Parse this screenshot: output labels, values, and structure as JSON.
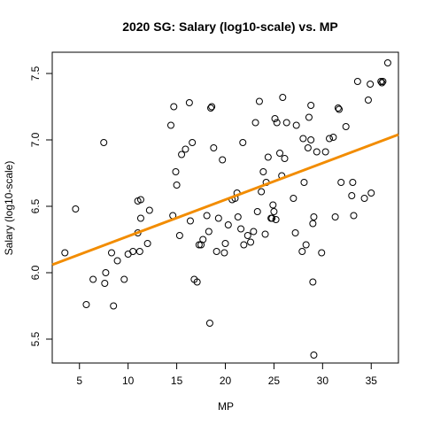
{
  "chart_data": {
    "type": "scatter",
    "title": "2020 SG: Salary (log10-scale) vs. MP",
    "xlabel": "MP",
    "ylabel": "Salary (log10-scale)",
    "xlim": [
      2.2,
      37.8
    ],
    "ylim": [
      5.32,
      7.66
    ],
    "xticks": [
      5,
      10,
      15,
      20,
      25,
      30,
      35
    ],
    "yticks": [
      5.5,
      6.0,
      6.5,
      7.0,
      7.5
    ],
    "ytick_labels": [
      "5.5",
      "6.0",
      "6.5",
      "7.0",
      "7.5"
    ],
    "grid": false,
    "legend": "none",
    "regression_line": {
      "x": [
        2.2,
        37.8
      ],
      "y": [
        6.06,
        7.04
      ],
      "color": "#F28C00"
    },
    "points": [
      {
        "x": 3.5,
        "y": 6.15
      },
      {
        "x": 4.6,
        "y": 6.48
      },
      {
        "x": 5.7,
        "y": 5.76
      },
      {
        "x": 6.4,
        "y": 5.95
      },
      {
        "x": 7.5,
        "y": 6.98
      },
      {
        "x": 7.6,
        "y": 5.92
      },
      {
        "x": 7.7,
        "y": 6.0
      },
      {
        "x": 8.3,
        "y": 6.15
      },
      {
        "x": 8.5,
        "y": 5.75
      },
      {
        "x": 8.9,
        "y": 6.09
      },
      {
        "x": 9.6,
        "y": 5.95
      },
      {
        "x": 10.0,
        "y": 6.14
      },
      {
        "x": 10.5,
        "y": 6.16
      },
      {
        "x": 11.0,
        "y": 6.54
      },
      {
        "x": 11.0,
        "y": 6.3
      },
      {
        "x": 11.2,
        "y": 6.16
      },
      {
        "x": 11.3,
        "y": 6.55
      },
      {
        "x": 11.3,
        "y": 6.41
      },
      {
        "x": 12.0,
        "y": 6.22
      },
      {
        "x": 12.2,
        "y": 6.47
      },
      {
        "x": 14.4,
        "y": 7.11
      },
      {
        "x": 14.6,
        "y": 6.43
      },
      {
        "x": 14.7,
        "y": 7.25
      },
      {
        "x": 14.9,
        "y": 6.76
      },
      {
        "x": 15.0,
        "y": 6.66
      },
      {
        "x": 15.3,
        "y": 6.28
      },
      {
        "x": 15.5,
        "y": 6.89
      },
      {
        "x": 15.9,
        "y": 6.93
      },
      {
        "x": 16.3,
        "y": 7.28
      },
      {
        "x": 16.4,
        "y": 6.39
      },
      {
        "x": 16.6,
        "y": 6.98
      },
      {
        "x": 16.8,
        "y": 5.95
      },
      {
        "x": 17.1,
        "y": 5.93
      },
      {
        "x": 17.3,
        "y": 6.21
      },
      {
        "x": 17.5,
        "y": 6.21
      },
      {
        "x": 17.7,
        "y": 6.25
      },
      {
        "x": 18.1,
        "y": 6.43
      },
      {
        "x": 18.3,
        "y": 6.31
      },
      {
        "x": 18.4,
        "y": 5.62
      },
      {
        "x": 18.5,
        "y": 7.24
      },
      {
        "x": 18.6,
        "y": 7.25
      },
      {
        "x": 18.8,
        "y": 6.94
      },
      {
        "x": 19.1,
        "y": 6.16
      },
      {
        "x": 19.3,
        "y": 6.41
      },
      {
        "x": 19.7,
        "y": 6.85
      },
      {
        "x": 19.9,
        "y": 6.15
      },
      {
        "x": 20.0,
        "y": 6.22
      },
      {
        "x": 20.3,
        "y": 6.36
      },
      {
        "x": 20.7,
        "y": 6.55
      },
      {
        "x": 21.0,
        "y": 6.56
      },
      {
        "x": 21.2,
        "y": 6.6
      },
      {
        "x": 21.3,
        "y": 6.42
      },
      {
        "x": 21.6,
        "y": 6.33
      },
      {
        "x": 21.8,
        "y": 6.98
      },
      {
        "x": 21.9,
        "y": 6.21
      },
      {
        "x": 22.3,
        "y": 6.28
      },
      {
        "x": 22.6,
        "y": 6.23
      },
      {
        "x": 22.9,
        "y": 6.31
      },
      {
        "x": 23.1,
        "y": 7.13
      },
      {
        "x": 23.3,
        "y": 6.46
      },
      {
        "x": 23.5,
        "y": 7.29
      },
      {
        "x": 23.7,
        "y": 6.61
      },
      {
        "x": 23.9,
        "y": 6.76
      },
      {
        "x": 24.1,
        "y": 6.29
      },
      {
        "x": 24.2,
        "y": 6.68
      },
      {
        "x": 24.4,
        "y": 6.87
      },
      {
        "x": 24.7,
        "y": 6.41
      },
      {
        "x": 24.8,
        "y": 6.41
      },
      {
        "x": 24.9,
        "y": 6.51
      },
      {
        "x": 25.0,
        "y": 6.46
      },
      {
        "x": 25.1,
        "y": 7.16
      },
      {
        "x": 25.2,
        "y": 6.4
      },
      {
        "x": 25.3,
        "y": 7.13
      },
      {
        "x": 25.6,
        "y": 6.9
      },
      {
        "x": 25.8,
        "y": 6.73
      },
      {
        "x": 25.9,
        "y": 7.32
      },
      {
        "x": 26.1,
        "y": 6.86
      },
      {
        "x": 26.3,
        "y": 7.13
      },
      {
        "x": 27.0,
        "y": 6.56
      },
      {
        "x": 27.2,
        "y": 6.3
      },
      {
        "x": 27.3,
        "y": 7.11
      },
      {
        "x": 27.9,
        "y": 6.16
      },
      {
        "x": 28.0,
        "y": 7.01
      },
      {
        "x": 28.1,
        "y": 6.68
      },
      {
        "x": 28.3,
        "y": 6.21
      },
      {
        "x": 28.5,
        "y": 6.94
      },
      {
        "x": 28.6,
        "y": 7.17
      },
      {
        "x": 28.8,
        "y": 7.26
      },
      {
        "x": 28.8,
        "y": 7.0
      },
      {
        "x": 29.0,
        "y": 5.93
      },
      {
        "x": 29.0,
        "y": 6.37
      },
      {
        "x": 29.1,
        "y": 6.42
      },
      {
        "x": 29.1,
        "y": 5.38
      },
      {
        "x": 29.4,
        "y": 6.91
      },
      {
        "x": 29.9,
        "y": 6.15
      },
      {
        "x": 30.3,
        "y": 6.91
      },
      {
        "x": 30.7,
        "y": 7.01
      },
      {
        "x": 31.1,
        "y": 7.02
      },
      {
        "x": 31.3,
        "y": 6.42
      },
      {
        "x": 31.6,
        "y": 7.24
      },
      {
        "x": 31.7,
        "y": 7.23
      },
      {
        "x": 31.9,
        "y": 6.68
      },
      {
        "x": 32.4,
        "y": 7.1
      },
      {
        "x": 33.0,
        "y": 6.58
      },
      {
        "x": 33.1,
        "y": 6.68
      },
      {
        "x": 33.2,
        "y": 6.43
      },
      {
        "x": 33.6,
        "y": 7.44
      },
      {
        "x": 34.3,
        "y": 6.56
      },
      {
        "x": 34.7,
        "y": 7.3
      },
      {
        "x": 34.9,
        "y": 7.42
      },
      {
        "x": 35.0,
        "y": 6.6
      },
      {
        "x": 36.0,
        "y": 7.44
      },
      {
        "x": 36.1,
        "y": 7.43
      },
      {
        "x": 36.2,
        "y": 7.44
      },
      {
        "x": 36.7,
        "y": 7.58
      }
    ]
  }
}
